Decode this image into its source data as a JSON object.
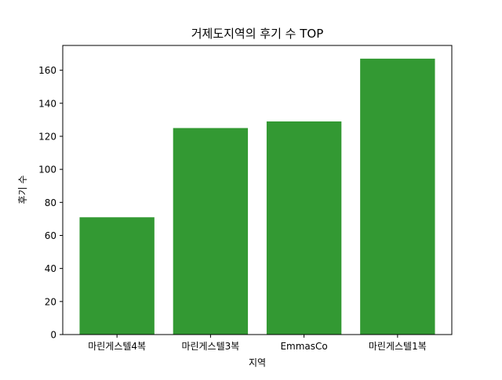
{
  "chart_data": {
    "type": "bar",
    "title": "거제도지역의 후기 수 TOP",
    "xlabel": "지역",
    "ylabel": "후기 수",
    "categories": [
      "마린게스텔4복",
      "마린게스텔3복",
      "EmmasCo",
      "마린게스텔1복"
    ],
    "values": [
      71,
      125,
      129,
      167
    ],
    "ylim": [
      0,
      175
    ],
    "yticks": [
      0,
      20,
      40,
      60,
      80,
      100,
      120,
      140,
      160
    ],
    "ytick_labels": [
      "0",
      "20",
      "40",
      "60",
      "80",
      "100",
      "120",
      "140",
      "160"
    ],
    "grid": false,
    "legend": "none",
    "bar_color": "#339933"
  }
}
